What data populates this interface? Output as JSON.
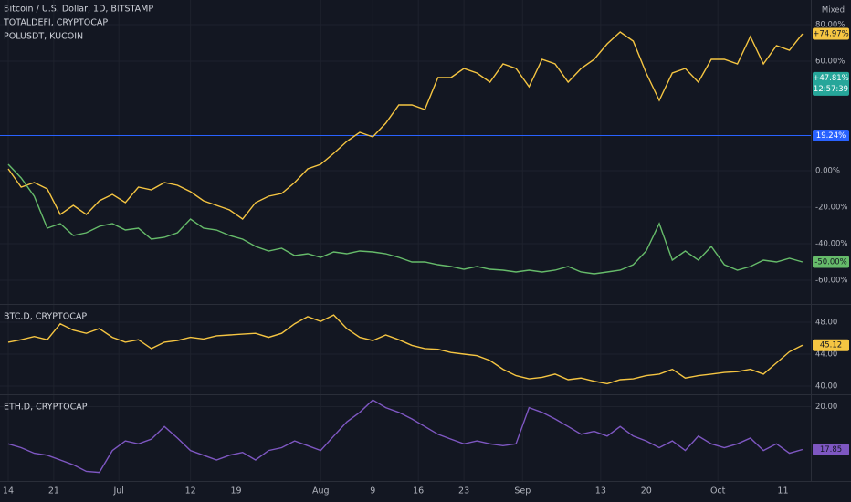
{
  "scale_mode": "Mixed",
  "x_axis": {
    "x": [
      0,
      2,
      4,
      6,
      8,
      10,
      12,
      14,
      16,
      18,
      20,
      22,
      24,
      26,
      28,
      30,
      32,
      34,
      36,
      38,
      40,
      42,
      44,
      46,
      48,
      50,
      52,
      54,
      56,
      58,
      60,
      62,
      64,
      66,
      68,
      70,
      72,
      74,
      76,
      78,
      80,
      82,
      84,
      86,
      88,
      90,
      92,
      94,
      96,
      98,
      100,
      102,
      104,
      106,
      108,
      110,
      112,
      114,
      116,
      118,
      120,
      122
    ],
    "xlim": [
      -1.26,
      123.28
    ],
    "xticks": [
      {
        "value": 0,
        "label": "14"
      },
      {
        "value": 7,
        "label": "21"
      },
      {
        "value": 17,
        "label": "Jul"
      },
      {
        "value": 28,
        "label": "12"
      },
      {
        "value": 35,
        "label": "19"
      },
      {
        "value": 48,
        "label": "Aug"
      },
      {
        "value": 56,
        "label": "9"
      },
      {
        "value": 63,
        "label": "16"
      },
      {
        "value": 70,
        "label": "23"
      },
      {
        "value": 79,
        "label": "Sep"
      },
      {
        "value": 91,
        "label": "13"
      },
      {
        "value": 98,
        "label": "20"
      },
      {
        "value": 109,
        "label": "Oct"
      },
      {
        "value": 119,
        "label": "11"
      }
    ]
  },
  "chart_data": [
    {
      "type": "line",
      "title": "Bitcoin / U.S. Dollar, 1D, BITSTAMP",
      "ylim": [
        -73,
        93.5
      ],
      "yticks": [
        {
          "value": 80,
          "label": "80.00%"
        },
        {
          "value": 60,
          "label": "60.00%"
        },
        {
          "value": 0,
          "label": "0.00%"
        },
        {
          "value": -20,
          "label": "-20.00%"
        },
        {
          "value": -40,
          "label": "-40.00%"
        },
        {
          "value": -60,
          "label": "-60.00%"
        }
      ],
      "hline": {
        "value": 19.24,
        "label": "19.24%",
        "color": "#2962ff"
      },
      "price_label": {
        "value": 47.81,
        "label": "+47.81%",
        "sublabel": "12:57:39",
        "color": "#26a69a"
      },
      "series": [
        {
          "name": "TOTALDEFI, CRYPTOCAP",
          "color": "#f5c542",
          "last_label": "+74.97%",
          "values": [
            1,
            -9,
            -6.5,
            -10,
            -24,
            -19,
            -24,
            -16.5,
            -13,
            -17.5,
            -9,
            -10.5,
            -6.5,
            -8,
            -11.5,
            -16.5,
            -19,
            -21.5,
            -26.5,
            -17.5,
            -14,
            -12.5,
            -6.5,
            1,
            3.5,
            9.5,
            16,
            21,
            18.5,
            26,
            36,
            36,
            33.5,
            51,
            51,
            56,
            53.5,
            48.5,
            58.5,
            56,
            46,
            61,
            58.5,
            48.5,
            56,
            61,
            69.5,
            76,
            71,
            53.5,
            38.5,
            53.5,
            56,
            48.5,
            61,
            61,
            58.5,
            73.5,
            58.5,
            68.5,
            66,
            74.97
          ]
        },
        {
          "name": "POLUSDT, KUCOIN",
          "color": "#66bb6a",
          "last_label": "-50.00%",
          "values": [
            3.5,
            -4,
            -14,
            -31.5,
            -29,
            -35.5,
            -34,
            -30.5,
            -29,
            -32.5,
            -31.5,
            -37.5,
            -36.5,
            -34,
            -26.5,
            -31.5,
            -32.5,
            -35.5,
            -37.5,
            -41.5,
            -44,
            -42.5,
            -46.5,
            -45.5,
            -47.5,
            -44.5,
            -45.5,
            -44,
            -44.5,
            -45.5,
            -47.5,
            -50,
            -50,
            -51.5,
            -52.5,
            -54,
            -52.5,
            -54,
            -54.5,
            -55.5,
            -54.5,
            -55.5,
            -54.5,
            -52.5,
            -55.5,
            -56.5,
            -55.5,
            -54.5,
            -51.5,
            -44,
            -29,
            -49,
            -44,
            -49,
            -41.5,
            -51.5,
            -54.5,
            -52.5,
            -49,
            -50,
            -48,
            -50
          ]
        }
      ]
    },
    {
      "type": "line",
      "ylim": [
        38.97,
        50.17
      ],
      "yticks": [
        {
          "value": 48,
          "label": "48.00"
        },
        {
          "value": 44,
          "label": "44.00"
        },
        {
          "value": 40,
          "label": "40.00"
        }
      ],
      "series": [
        {
          "name": "BTC.D, CRYPTOCAP",
          "color": "#f5c542",
          "last_label": "45.12",
          "values": [
            45.5,
            45.8,
            46.2,
            45.8,
            47.8,
            47.0,
            46.6,
            47.2,
            46.1,
            45.5,
            45.8,
            44.7,
            45.5,
            45.7,
            46.1,
            45.9,
            46.3,
            46.4,
            46.5,
            46.6,
            46.1,
            46.6,
            47.8,
            48.7,
            48.1,
            48.9,
            47.2,
            46.1,
            45.7,
            46.4,
            45.8,
            45.1,
            44.7,
            44.6,
            44.2,
            44.0,
            43.8,
            43.2,
            42.1,
            41.3,
            40.9,
            41.1,
            41.5,
            40.8,
            41.0,
            40.6,
            40.3,
            40.8,
            40.9,
            41.3,
            41.5,
            42.1,
            41.0,
            41.3,
            41.5,
            41.7,
            41.8,
            42.1,
            41.5,
            42.9,
            44.3,
            45.12
          ]
        }
      ]
    },
    {
      "type": "line",
      "ylim": [
        16.27,
        20.57
      ],
      "yticks": [
        {
          "value": 20,
          "label": "20.00"
        }
      ],
      "series": [
        {
          "name": "ETH.D, CRYPTOCAP",
          "color": "#7e57c2",
          "last_label": "17.85",
          "values": [
            18.13,
            17.94,
            17.66,
            17.56,
            17.32,
            17.08,
            16.75,
            16.7,
            17.8,
            18.28,
            18.13,
            18.37,
            19.0,
            18.42,
            17.8,
            17.56,
            17.32,
            17.56,
            17.7,
            17.32,
            17.8,
            17.94,
            18.28,
            18.04,
            17.8,
            18.52,
            19.23,
            19.71,
            20.33,
            19.95,
            19.71,
            19.38,
            19.0,
            18.61,
            18.37,
            18.13,
            18.28,
            18.13,
            18.04,
            18.13,
            19.95,
            19.71,
            19.38,
            19.0,
            18.61,
            18.76,
            18.52,
            19.0,
            18.52,
            18.28,
            17.94,
            18.28,
            17.8,
            18.52,
            18.13,
            17.94,
            18.13,
            18.42,
            17.8,
            18.13,
            17.66,
            17.85
          ]
        }
      ]
    }
  ]
}
